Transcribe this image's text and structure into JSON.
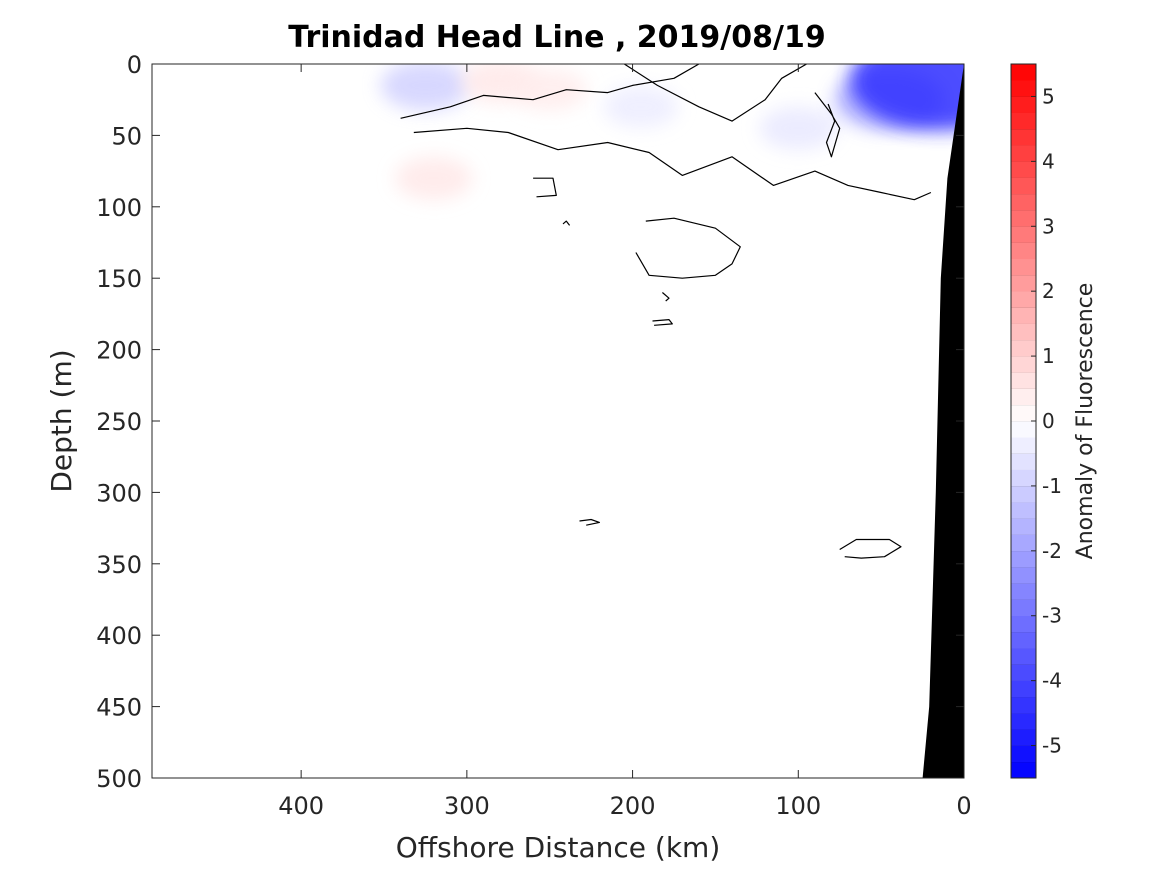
{
  "chart_data": {
    "type": "contour",
    "title": "Trinidad Head Line , 2019/08/19",
    "xlabel": "Offshore Distance (km)",
    "ylabel": "Depth (m)",
    "xlim": [
      490,
      0
    ],
    "ylim": [
      0,
      500
    ],
    "x_reversed": true,
    "y_reversed": true,
    "xticks": [
      400,
      300,
      200,
      100,
      0
    ],
    "yticks": [
      0,
      50,
      100,
      150,
      200,
      250,
      300,
      350,
      400,
      450,
      500
    ],
    "colorbar": {
      "label": "Anomaly of Fluorescence",
      "range": [
        -5.5,
        5.5
      ],
      "ticks": [
        5,
        4,
        3,
        2,
        1,
        0,
        -1,
        -2,
        -3,
        -4,
        -5
      ],
      "levels": 44,
      "low_color": "#0000ff",
      "mid_color": "#ffffff",
      "high_color": "#ff0000"
    },
    "anomaly_patches": [
      {
        "x": 325,
        "y": 15,
        "value": -1.0
      },
      {
        "x": 280,
        "y": 12,
        "value": 0.5
      },
      {
        "x": 250,
        "y": 18,
        "value": 0.4
      },
      {
        "x": 195,
        "y": 30,
        "value": -0.4
      },
      {
        "x": 100,
        "y": 45,
        "value": -0.5
      },
      {
        "x": 45,
        "y": 25,
        "value": -1.8
      },
      {
        "x": 15,
        "y": 12,
        "value": -4.5
      },
      {
        "x": 320,
        "y": 80,
        "value": 0.5
      }
    ],
    "zero_contours": [
      {
        "points": [
          [
            340,
            38
          ],
          [
            310,
            30
          ],
          [
            290,
            22
          ],
          [
            260,
            25
          ],
          [
            240,
            18
          ],
          [
            215,
            20
          ],
          [
            200,
            15
          ],
          [
            175,
            10
          ],
          [
            160,
            0
          ]
        ]
      },
      {
        "points": [
          [
            332,
            48
          ],
          [
            300,
            45
          ],
          [
            275,
            48
          ],
          [
            245,
            60
          ],
          [
            215,
            55
          ],
          [
            190,
            62
          ],
          [
            170,
            78
          ],
          [
            140,
            65
          ],
          [
            115,
            85
          ],
          [
            90,
            75
          ],
          [
            70,
            85
          ],
          [
            50,
            90
          ],
          [
            30,
            95
          ],
          [
            20,
            90
          ]
        ]
      },
      {
        "points": [
          [
            205,
            0
          ],
          [
            185,
            15
          ],
          [
            160,
            30
          ],
          [
            140,
            40
          ],
          [
            120,
            25
          ],
          [
            110,
            10
          ],
          [
            95,
            0
          ]
        ]
      },
      {
        "points": [
          [
            90,
            20
          ],
          [
            80,
            35
          ],
          [
            75,
            45
          ],
          [
            80,
            65
          ],
          [
            83,
            55
          ],
          [
            78,
            40
          ],
          [
            82,
            28
          ]
        ]
      },
      {
        "points": [
          [
            260,
            80
          ],
          [
            248,
            80
          ],
          [
            246,
            92
          ],
          [
            258,
            93
          ]
        ]
      },
      {
        "points": [
          [
            192,
            110
          ],
          [
            175,
            108
          ],
          [
            150,
            115
          ],
          [
            135,
            128
          ],
          [
            140,
            140
          ],
          [
            150,
            148
          ],
          [
            170,
            150
          ],
          [
            190,
            148
          ],
          [
            198,
            132
          ]
        ]
      },
      {
        "points": [
          [
            182,
            160
          ],
          [
            178,
            164
          ],
          [
            180,
            166
          ]
        ]
      },
      {
        "points": [
          [
            188,
            180
          ],
          [
            178,
            179
          ],
          [
            176,
            182
          ],
          [
            187,
            183
          ]
        ]
      },
      {
        "points": [
          [
            232,
            320
          ],
          [
            225,
            319
          ],
          [
            220,
            321
          ],
          [
            228,
            323
          ]
        ]
      },
      {
        "points": [
          [
            75,
            340
          ],
          [
            65,
            333
          ],
          [
            45,
            333
          ],
          [
            38,
            338
          ],
          [
            48,
            345
          ],
          [
            62,
            346
          ],
          [
            72,
            345
          ]
        ]
      },
      {
        "points": [
          [
            242,
            112
          ],
          [
            240,
            110
          ],
          [
            238,
            113
          ]
        ]
      }
    ],
    "bathymetry": [
      [
        0,
        0
      ],
      [
        10,
        80
      ],
      [
        14,
        150
      ],
      [
        17,
        300
      ],
      [
        21,
        450
      ],
      [
        25,
        500
      ]
    ]
  }
}
